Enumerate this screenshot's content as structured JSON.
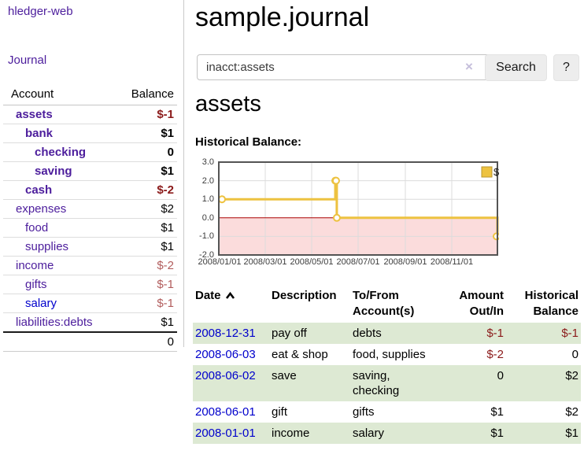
{
  "colors": {
    "link_purple": "#4c1d9c",
    "link_blue": "#0000cc",
    "negative_strong": "#8b1a1a",
    "negative_muted": "#b25d5d",
    "row_green": "#dde9d3",
    "chart_line_gold": "#edc240",
    "chart_negative_fill": "#fbdcdc",
    "chart_zero_line": "#aa0000",
    "chart_grid": "#dcdcdc",
    "chart_border": "#545454",
    "button_bg": "#ededed"
  },
  "sidebar": {
    "brand": "hledger-web",
    "journal_label": "Journal",
    "accounts": {
      "col_account": "Account",
      "col_balance": "Balance",
      "rows": [
        {
          "name": "assets",
          "level": 1,
          "bold": true,
          "balance": "$-1",
          "balance_style": "neg-strong",
          "link_color": "purple"
        },
        {
          "name": "bank",
          "level": 2,
          "bold": true,
          "balance": "$1",
          "balance_style": "pos",
          "link_color": "purple"
        },
        {
          "name": "checking",
          "level": 3,
          "bold": true,
          "balance": "0",
          "balance_style": "pos",
          "link_color": "purple"
        },
        {
          "name": "saving",
          "level": 3,
          "bold": true,
          "balance": "$1",
          "balance_style": "pos",
          "link_color": "purple"
        },
        {
          "name": "cash",
          "level": 2,
          "bold": true,
          "balance": "$-2",
          "balance_style": "neg-strong",
          "link_color": "purple"
        },
        {
          "name": "expenses",
          "level": 1,
          "bold": false,
          "balance": "$2",
          "balance_style": "pos",
          "link_color": "purple"
        },
        {
          "name": "food",
          "level": 2,
          "bold": false,
          "balance": "$1",
          "balance_style": "pos",
          "link_color": "purple"
        },
        {
          "name": "supplies",
          "level": 2,
          "bold": false,
          "balance": "$1",
          "balance_style": "pos",
          "link_color": "purple"
        },
        {
          "name": "income",
          "level": 1,
          "bold": false,
          "balance": "$-2",
          "balance_style": "neg-muted",
          "link_color": "purple"
        },
        {
          "name": "gifts",
          "level": 2,
          "bold": false,
          "balance": "$-1",
          "balance_style": "neg-muted",
          "link_color": "purple"
        },
        {
          "name": "salary",
          "level": 2,
          "bold": false,
          "balance": "$-1",
          "balance_style": "neg-muted",
          "link_color": "blue"
        },
        {
          "name": "liabilities:debts",
          "level": 1,
          "bold": false,
          "balance": "$1",
          "balance_style": "pos",
          "link_color": "purple"
        }
      ],
      "total": "0"
    }
  },
  "main": {
    "title": "sample.journal",
    "search": {
      "value": "inacct:assets",
      "clear_icon": "×",
      "search_label": "Search",
      "help_label": "?"
    },
    "account_heading": "assets",
    "chart_label": "Historical Balance:"
  },
  "chart_data": {
    "type": "line",
    "step": true,
    "title": "Historical Balance:",
    "series": [
      {
        "name": "$",
        "points": [
          [
            "2008-01-01",
            1
          ],
          [
            "2008-06-01",
            2
          ],
          [
            "2008-06-02",
            2
          ],
          [
            "2008-06-03",
            0
          ],
          [
            "2008-12-31",
            -1
          ]
        ]
      }
    ],
    "x_range": [
      "2008-01-01",
      "2008-12-31"
    ],
    "ylim": [
      -2,
      3
    ],
    "y_ticks": [
      "3.0",
      "2.0",
      "1.0",
      "0.0",
      "-1.0",
      "-2.0"
    ],
    "y_tick_values": [
      3,
      2,
      1,
      0,
      -1,
      -2
    ],
    "x_ticks": [
      "2008/01/01",
      "2008/03/01",
      "2008/05/01",
      "2008/07/01",
      "2008/09/01",
      "2008/11/01"
    ],
    "x_tick_dates": [
      "2008-01-01",
      "2008-03-01",
      "2008-05-01",
      "2008-07-01",
      "2008-09-01",
      "2008-11-01"
    ],
    "legend": [
      "$"
    ],
    "legend_position": "top-right",
    "grid": true,
    "negative_region_shaded": true
  },
  "register": {
    "sort": {
      "column": "Date",
      "direction": "ascending"
    },
    "headers": {
      "date": "Date",
      "description": "Description",
      "tofrom_line1": "To/From",
      "tofrom_line2": "Account(s)",
      "amount_line1": "Amount",
      "amount_line2": "Out/In",
      "balance_line1": "Historical",
      "balance_line2": "Balance"
    },
    "rows": [
      {
        "date": "2008-12-31",
        "description": "pay off",
        "accounts": "debts",
        "amount": "$-1",
        "amount_negative": true,
        "balance": "$-1",
        "balance_negative": true,
        "shaded": true
      },
      {
        "date": "2008-06-03",
        "description": "eat & shop",
        "accounts": "food, supplies",
        "amount": "$-2",
        "amount_negative": true,
        "balance": "0",
        "balance_negative": false,
        "shaded": false
      },
      {
        "date": "2008-06-02",
        "description": "save",
        "accounts": "saving, checking",
        "amount": "0",
        "amount_negative": false,
        "balance": "$2",
        "balance_negative": false,
        "shaded": true
      },
      {
        "date": "2008-06-01",
        "description": "gift",
        "accounts": "gifts",
        "amount": "$1",
        "amount_negative": false,
        "balance": "$2",
        "balance_negative": false,
        "shaded": false
      },
      {
        "date": "2008-01-01",
        "description": "income",
        "accounts": "salary",
        "amount": "$1",
        "amount_negative": false,
        "balance": "$1",
        "balance_negative": false,
        "shaded": true
      }
    ]
  }
}
